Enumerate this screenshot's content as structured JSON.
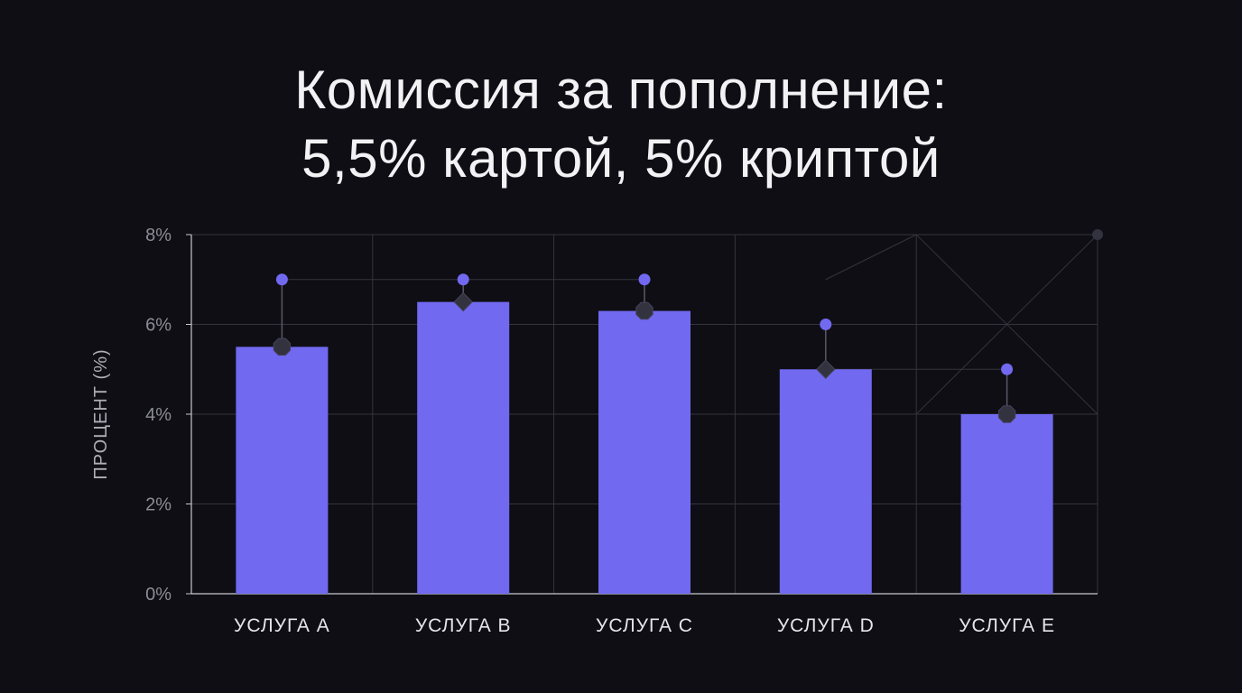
{
  "chart_data": {
    "type": "bar",
    "title_lines": [
      "Комиссия за пополнение:",
      "5,5% картой, 5% криптой"
    ],
    "ylabel": "ПРОЦЕНТ (%)",
    "xlabel": "",
    "categories": [
      "УСЛУГА A",
      "УСЛУГА B",
      "УСЛУГА C",
      "УСЛУГА D",
      "УСЛУГА E"
    ],
    "values": [
      5.5,
      6.5,
      6.3,
      5.0,
      4.0
    ],
    "pin_values": [
      7,
      7,
      7,
      6,
      5
    ],
    "ylim": [
      0,
      8
    ],
    "yticks": [
      "0%",
      "2%",
      "4%",
      "6%",
      "8%"
    ],
    "grid": true,
    "colors": {
      "bar": "#7169f0",
      "pin": "#7169f0",
      "marker": "#33323f",
      "grid": "#34343f",
      "axis": "#c8c8d0",
      "tick_label": "#8c8c96",
      "category_label": "#e6e6ea",
      "ylabel": "#aeaeb8",
      "background": "#0f0e14",
      "title": "#f2f2f5"
    }
  }
}
